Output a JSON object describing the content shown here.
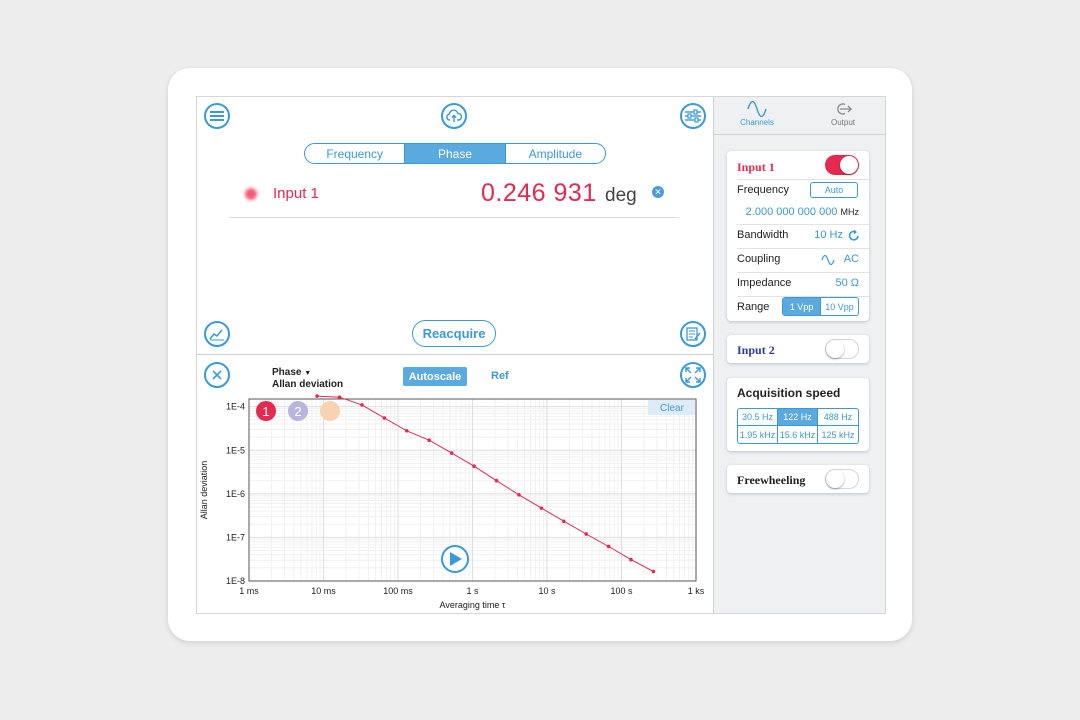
{
  "header": {
    "menu_icon": "hamburger-menu-icon",
    "upload_icon": "cloud-upload-icon",
    "settings_icon": "sliders-icon"
  },
  "measure_tabs": [
    {
      "label": "Frequency",
      "active": false
    },
    {
      "label": "Phase",
      "active": true
    },
    {
      "label": "Amplitude",
      "active": false
    }
  ],
  "readout": {
    "channel": "Input 1",
    "value": "0.246 931",
    "unit": "deg",
    "color": "#e8294f"
  },
  "actions": {
    "reacquire_label": "Reacquire"
  },
  "plot_toolbar": {
    "quantity": "Phase",
    "mode": "Allan deviation",
    "autoscale_label": "Autoscale",
    "ref_label": "Ref",
    "clear_label": "Clear"
  },
  "chart_data": {
    "type": "line",
    "xlabel": "Averaging time τ",
    "ylabel": "Allan deviation",
    "x_scale": "log",
    "y_scale": "log",
    "xlim": [
      0.001,
      1000
    ],
    "ylim": [
      1e-08,
      0.00015
    ],
    "x_ticks": [
      {
        "v": 0.001,
        "label": "1 ms"
      },
      {
        "v": 0.01,
        "label": "10 ms"
      },
      {
        "v": 0.1,
        "label": "100 ms"
      },
      {
        "v": 1,
        "label": "1 s"
      },
      {
        "v": 10,
        "label": "10 s"
      },
      {
        "v": 100,
        "label": "100 s"
      },
      {
        "v": 1000,
        "label": "1 ks"
      }
    ],
    "y_ticks": [
      {
        "v": 0.0001,
        "label": "1E-4"
      },
      {
        "v": 1e-05,
        "label": "1E-5"
      },
      {
        "v": 1e-06,
        "label": "1E-6"
      },
      {
        "v": 1e-07,
        "label": "1E-7"
      },
      {
        "v": 1e-08,
        "label": "1E-8"
      }
    ],
    "grid": true,
    "legend_markers": [
      {
        "label": "1",
        "color": "#e8294f"
      },
      {
        "label": "2",
        "color": "#b9b5de"
      },
      {
        "label": "",
        "color": "#f8d2b3"
      }
    ],
    "series": [
      {
        "color": "#e8294f",
        "x": [
          0.0082,
          0.0164,
          0.0328,
          0.0656,
          0.131,
          0.262,
          0.525,
          1.05,
          2.1,
          4.2,
          8.4,
          16.8,
          33.6,
          67.1,
          134,
          268
        ],
        "y": [
          0.000175,
          0.000165,
          0.00011,
          5.5e-05,
          2.8e-05,
          1.7e-05,
          8.6e-06,
          4.3e-06,
          2e-06,
          9.5e-07,
          4.7e-07,
          2.35e-07,
          1.2e-07,
          6.2e-08,
          3.1e-08,
          1.65e-08
        ]
      }
    ]
  },
  "side_panel": {
    "tabs": [
      {
        "label": "Channels",
        "icon": "sine-wave-icon",
        "active": true
      },
      {
        "label": "Output",
        "icon": "output-arrow-icon",
        "active": false
      }
    ],
    "input1": {
      "title": "Input 1",
      "enabled": true,
      "frequency_label": "Frequency",
      "frequency_mode": "Auto",
      "frequency_value": "2.000 000 000 000",
      "frequency_unit": "MHz",
      "bandwidth_label": "Bandwidth",
      "bandwidth_value": "10 Hz",
      "coupling_label": "Coupling",
      "coupling_value": "AC",
      "impedance_label": "Impedance",
      "impedance_value": "50 Ω",
      "range_label": "Range",
      "range_options": [
        {
          "label": "1 Vpp",
          "active": true
        },
        {
          "label": "10 Vpp",
          "active": false
        }
      ]
    },
    "input2": {
      "title": "Input 2",
      "enabled": false
    },
    "acquisition": {
      "title": "Acquisition speed",
      "options": [
        {
          "label": "30.5 Hz",
          "active": false
        },
        {
          "label": "122 Hz",
          "active": true
        },
        {
          "label": "488 Hz",
          "active": false
        },
        {
          "label": "1.95 kHz",
          "active": false
        },
        {
          "label": "15.6 kHz",
          "active": false
        },
        {
          "label": "125 kHz",
          "active": false
        }
      ]
    },
    "freewheeling": {
      "title": "Freewheeling",
      "enabled": false
    }
  }
}
